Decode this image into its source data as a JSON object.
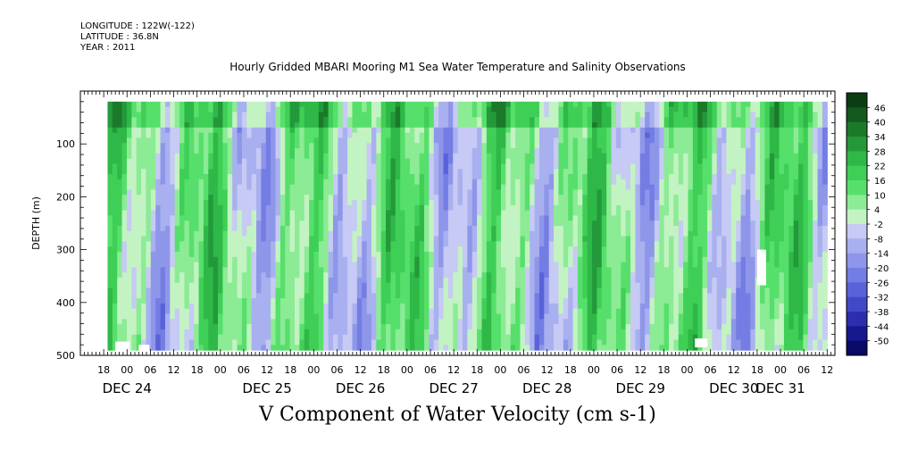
{
  "header": {
    "longitude": "LONGITUDE : 122W(-122)",
    "latitude": "LATITUDE : 36.8N",
    "year": "YEAR : 2011"
  },
  "chart_data": {
    "type": "heatmap",
    "title": "Hourly Gridded MBARI Mooring M1 Sea Water Temperature and Salinity Observations",
    "xlabel": "V Component of Water Velocity (cm s-1)",
    "ylabel": "DEPTH (m)",
    "ylim": [
      500,
      0
    ],
    "y_ticks": [
      100,
      200,
      300,
      400,
      500
    ],
    "x_range_hours": [
      "2011-12-23 12:00",
      "2011-12-31 14:00"
    ],
    "data_depth_range": [
      20,
      490
    ],
    "hour_ticks": [
      "18",
      "00",
      "06",
      "12",
      "18",
      "00",
      "06",
      "12",
      "18",
      "00",
      "06",
      "12",
      "18",
      "00",
      "06",
      "12",
      "18",
      "00",
      "06",
      "12",
      "18",
      "00",
      "06",
      "12",
      "18",
      "00",
      "06",
      "12",
      "18",
      "00",
      "06",
      "12"
    ],
    "day_labels": [
      {
        "label": "DEC 24",
        "hour": "00"
      },
      {
        "label": "DEC 25",
        "hour": "12"
      },
      {
        "label": "DEC 26",
        "hour": "12"
      },
      {
        "label": "DEC 27",
        "hour": "12"
      },
      {
        "label": "DEC 28",
        "hour": "12"
      },
      {
        "label": "DEC 29",
        "hour": "12"
      },
      {
        "label": "DEC 30",
        "hour": "12"
      },
      {
        "label": "DEC 31",
        "hour": "00"
      }
    ],
    "colorbar": {
      "labels": [
        "46",
        "40",
        "34",
        "28",
        "22",
        "16",
        "10",
        "4",
        "-2",
        "-8",
        "-14",
        "-20",
        "-26",
        "-32",
        "-38",
        "-44",
        "-50"
      ],
      "colors": [
        "#0b3d12",
        "#145a1e",
        "#1b7a2a",
        "#23993a",
        "#2fb847",
        "#3fcf57",
        "#57df6c",
        "#8ceb95",
        "#c3f3c2",
        "#c6caf4",
        "#a9b0ef",
        "#8e96e9",
        "#737de3",
        "#5a62d9",
        "#4249c8",
        "#2b2fae",
        "#16188e",
        "#080a66"
      ]
    }
  }
}
